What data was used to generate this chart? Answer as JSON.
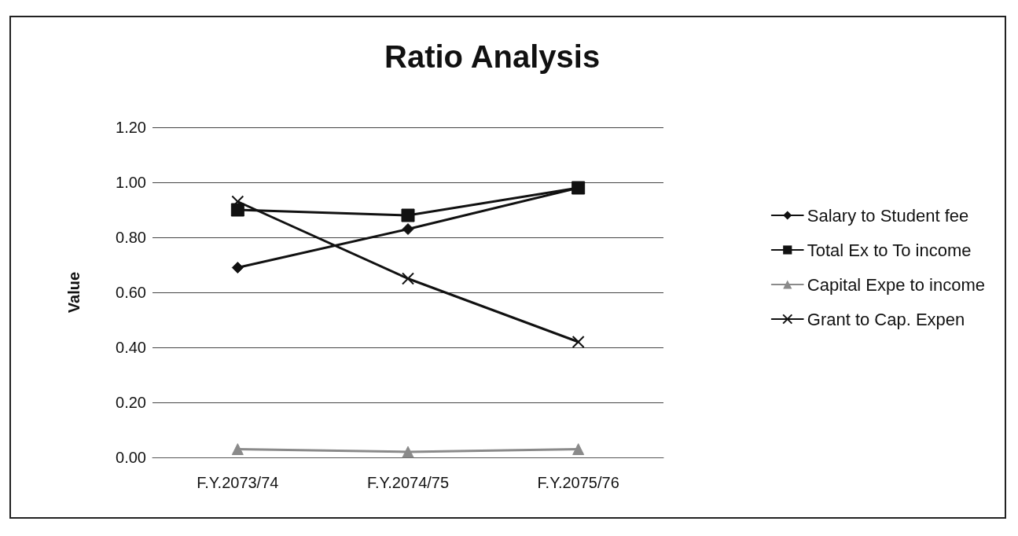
{
  "chart_data": {
    "type": "line",
    "title": "Ratio Analysis",
    "ylabel": "Value",
    "categories": [
      "F.Y.2073/74",
      "F.Y.2074/75",
      "F.Y.2075/76"
    ],
    "series": [
      {
        "name": "Salary to Student fee",
        "color": "#111111",
        "marker": "diamond",
        "values": [
          0.69,
          0.83,
          0.98
        ]
      },
      {
        "name": "Total Ex to To income",
        "color": "#111111",
        "marker": "square",
        "values": [
          0.9,
          0.88,
          0.98
        ]
      },
      {
        "name": "Capital Expe to income",
        "color": "#8a8a8a",
        "marker": "triangle",
        "values": [
          0.03,
          0.02,
          0.03
        ]
      },
      {
        "name": "Grant to Cap. Expen",
        "color": "#111111",
        "marker": "cross",
        "values": [
          0.93,
          0.65,
          0.42
        ]
      }
    ],
    "ylim": [
      0,
      1.2
    ],
    "yticks": [
      {
        "value": 0,
        "label": "0.00"
      },
      {
        "value": 0.2,
        "label": "0.20"
      },
      {
        "value": 0.4,
        "label": "0.40"
      },
      {
        "value": 0.6,
        "label": "0.60"
      },
      {
        "value": 0.8,
        "label": "0.80"
      },
      {
        "value": 1,
        "label": "1.00"
      },
      {
        "value": 1.2,
        "label": "1.20"
      }
    ],
    "grid": "y",
    "legend": "right",
    "line_style": "solid"
  }
}
